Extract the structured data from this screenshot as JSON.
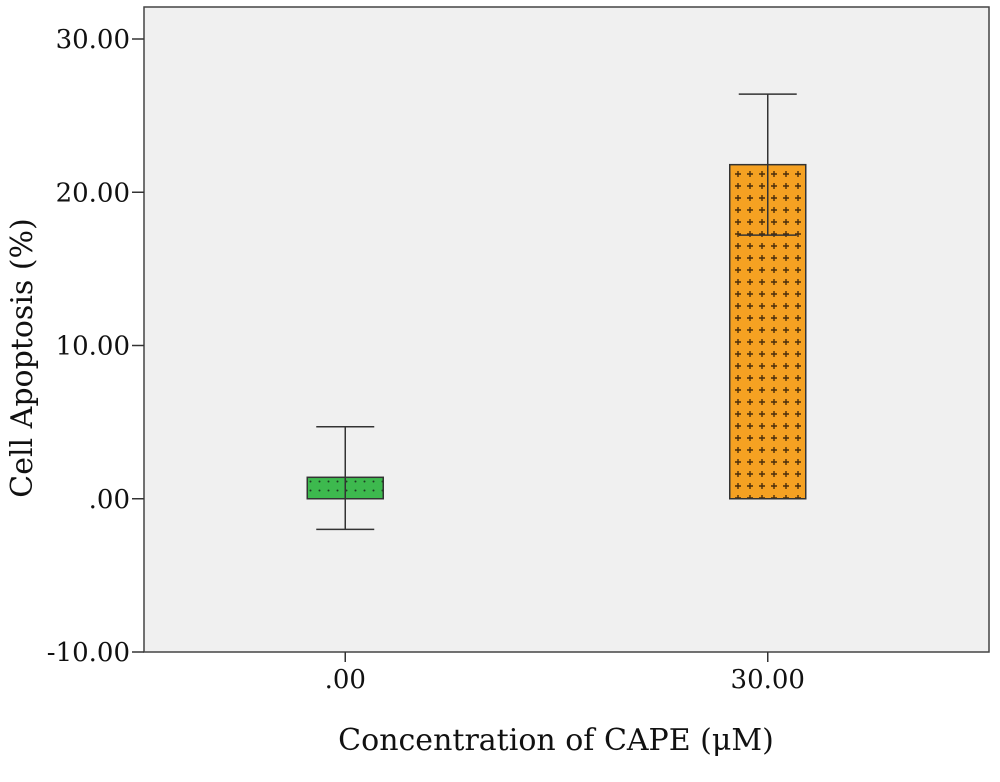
{
  "chart_data": {
    "type": "bar",
    "categories": [
      ".00",
      "30.00"
    ],
    "series": [
      {
        "values": [
          1.4,
          21.8
        ],
        "error_low": [
          -2.0,
          17.2
        ],
        "error_high": [
          4.7,
          26.4
        ],
        "colors": [
          "#3db94e",
          "#f5a122"
        ],
        "patterns": [
          "dots",
          "crosses"
        ]
      }
    ],
    "xlabel": "Concentration of CAPE (μM)",
    "ylabel": "Cell Apoptosis (%)",
    "ylim": [
      -10,
      30
    ],
    "yticks": [
      30,
      20,
      10,
      0,
      -10
    ],
    "ytick_labels": [
      "30.00",
      "20.00",
      "10.00",
      ".00",
      "-10.00"
    ],
    "grid": false,
    "background": "#f0f0f0"
  }
}
